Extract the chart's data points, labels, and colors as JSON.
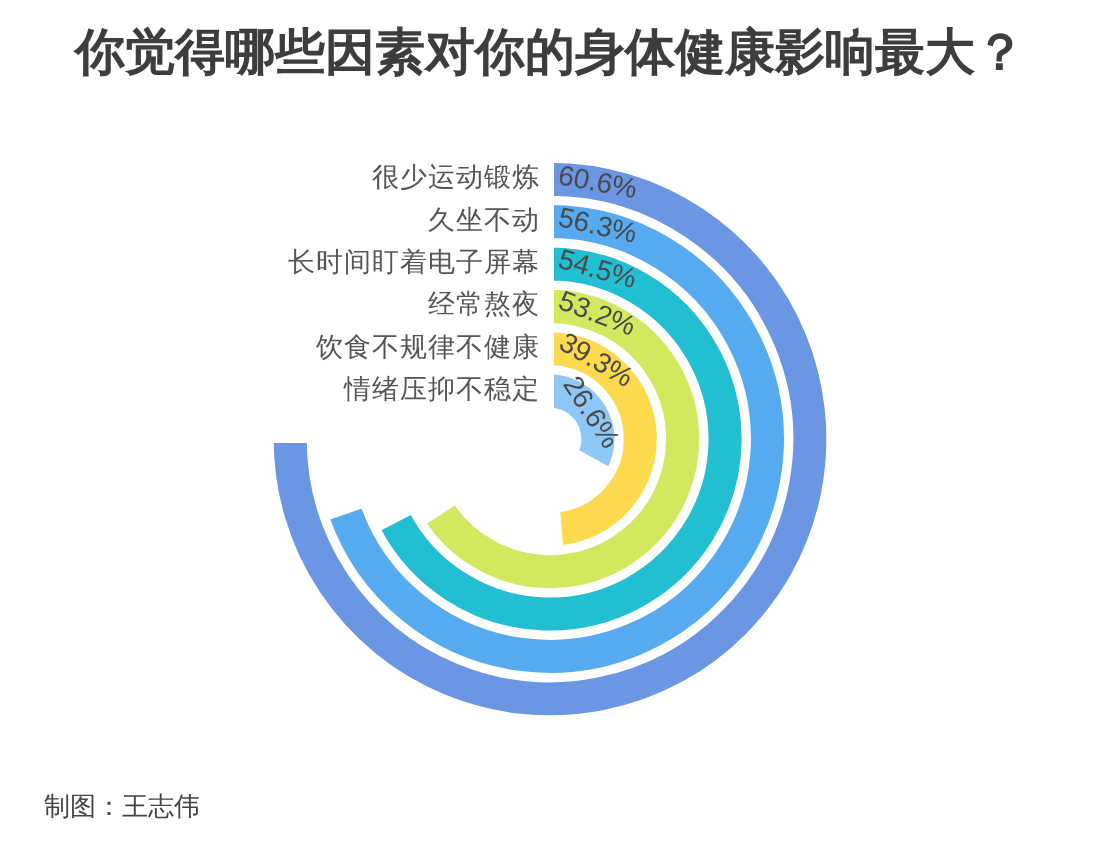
{
  "chart_data": {
    "type": "other",
    "title": "你觉得哪些因素对你的身体健康影响最大？",
    "categories": [
      "很少运动锻炼",
      "久坐不动",
      "长时间盯着电子屏幕",
      "经常熬夜",
      "饮食不规律不健康",
      "情绪压抑不稳定"
    ],
    "values": [
      60.6,
      56.3,
      54.5,
      53.2,
      39.3,
      26.6
    ],
    "colors": [
      "#6b96e3",
      "#55aaf0",
      "#22bfd3",
      "#d3e85e",
      "#fdd94e",
      "#8fc8f6"
    ],
    "value_labels": [
      "60.6%",
      "56.3%",
      "54.5%",
      "53.2%",
      "39.3%",
      "26.6%"
    ],
    "annotations": [
      "制图：王志伟"
    ]
  }
}
